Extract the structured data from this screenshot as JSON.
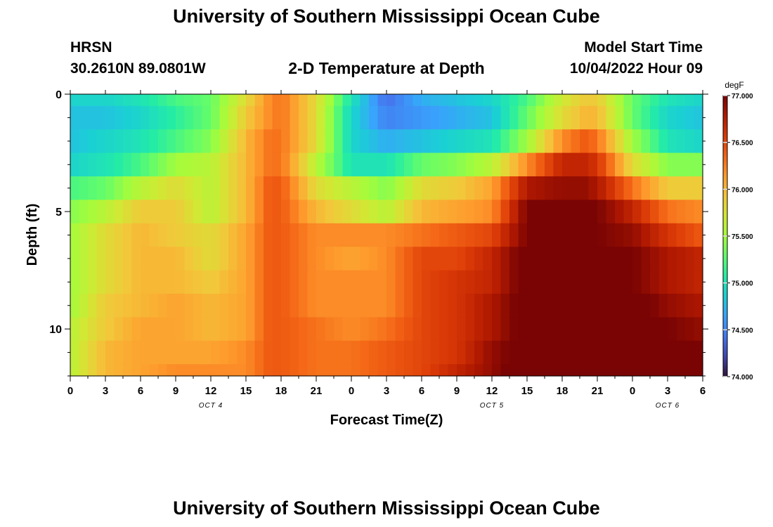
{
  "header": {
    "title": "University of Southern Mississippi Ocean Cube",
    "station_name": "HRSN",
    "station_coords": "30.2610N  89.0801W",
    "plot_title": "2-D Temperature at Depth",
    "model_label": "Model Start Time",
    "model_time": "10/04/2022 Hour 09"
  },
  "footer": {
    "title": "University of Southern Mississippi Ocean Cube"
  },
  "chart_data": {
    "type": "heatmap",
    "title": "2-D Temperature at Depth",
    "xlabel": "Forecast Time(Z)",
    "ylabel": "Depth (ft)",
    "colorbar_label": "degF",
    "x_ticks": [
      "0",
      "3",
      "6",
      "9",
      "12",
      "15",
      "18",
      "21",
      "0",
      "3",
      "6",
      "9",
      "12",
      "15",
      "18",
      "21",
      "0",
      "3",
      "6"
    ],
    "x_range_hours": [
      0,
      54
    ],
    "date_labels": [
      {
        "text": "OCT 4",
        "hour": 12
      },
      {
        "text": "OCT 5",
        "hour": 36
      },
      {
        "text": "OCT 6",
        "hour": 51
      }
    ],
    "y_ticks": [
      0,
      5,
      10
    ],
    "y_range": [
      0,
      12
    ],
    "y_inverted": true,
    "colorbar_ticks": [
      "77.000",
      "76.500",
      "76.000",
      "75.500",
      "75.000",
      "74.500",
      "74.000"
    ],
    "color_range": [
      74.0,
      77.0
    ],
    "colormap": [
      "#30123b",
      "#4145ab",
      "#4675ed",
      "#39a2fc",
      "#1bcfd4",
      "#24eca6",
      "#61fc6c",
      "#a4fc3b",
      "#d1e834",
      "#f3c63a",
      "#fe9b2d",
      "#f36315",
      "#d93806",
      "#b11901",
      "#7a0403"
    ],
    "column_hours": [
      0,
      3,
      6,
      9,
      12,
      15,
      17,
      18,
      21,
      24,
      27,
      30,
      33,
      36,
      39,
      42,
      44,
      45,
      48,
      51,
      54
    ],
    "rows": [
      {
        "depth": 0,
        "values": [
          74.9,
          74.9,
          75.0,
          75.2,
          75.3,
          75.8,
          76.2,
          76.3,
          75.8,
          75.0,
          74.4,
          74.7,
          74.8,
          74.9,
          75.2,
          75.7,
          75.9,
          75.9,
          75.3,
          75.0,
          74.9
        ]
      },
      {
        "depth": 1,
        "values": [
          74.8,
          74.8,
          74.9,
          75.1,
          75.3,
          75.9,
          76.2,
          76.3,
          75.8,
          74.9,
          74.5,
          74.6,
          74.7,
          74.8,
          75.3,
          75.8,
          76.0,
          76.0,
          75.3,
          74.9,
          74.8
        ]
      },
      {
        "depth": 2,
        "values": [
          74.8,
          74.9,
          75.0,
          75.2,
          75.4,
          76.0,
          76.3,
          76.3,
          75.8,
          74.9,
          74.7,
          74.8,
          74.9,
          75.0,
          75.5,
          76.2,
          76.4,
          76.3,
          75.5,
          75.0,
          74.9
        ]
      },
      {
        "depth": 3,
        "values": [
          74.9,
          75.0,
          75.2,
          75.5,
          75.6,
          76.0,
          76.3,
          76.3,
          75.6,
          75.0,
          75.0,
          75.3,
          75.4,
          75.6,
          76.2,
          76.7,
          76.7,
          76.6,
          75.8,
          75.4,
          75.4
        ]
      },
      {
        "depth": 4,
        "values": [
          75.2,
          75.3,
          75.6,
          75.8,
          75.6,
          76.0,
          76.4,
          76.4,
          75.8,
          75.6,
          75.4,
          75.8,
          75.9,
          76.1,
          76.8,
          76.9,
          76.9,
          76.8,
          76.3,
          75.9,
          75.9
        ]
      },
      {
        "depth": 5,
        "values": [
          75.4,
          75.6,
          75.9,
          75.9,
          75.6,
          76.0,
          76.4,
          76.4,
          76.0,
          75.8,
          75.6,
          76.0,
          76.1,
          76.2,
          77.0,
          77.0,
          77.0,
          77.0,
          76.7,
          76.3,
          76.2
        ]
      },
      {
        "depth": 6,
        "values": [
          75.5,
          75.8,
          76.0,
          75.9,
          75.8,
          76.1,
          76.4,
          76.4,
          76.2,
          76.2,
          76.2,
          76.3,
          76.4,
          76.5,
          77.0,
          77.1,
          77.1,
          77.0,
          76.9,
          76.6,
          76.4
        ]
      },
      {
        "depth": 7,
        "values": [
          75.5,
          75.8,
          76.0,
          76.0,
          75.8,
          76.1,
          76.4,
          76.4,
          76.2,
          76.1,
          76.2,
          76.5,
          76.5,
          76.7,
          77.1,
          77.2,
          77.1,
          77.1,
          77.0,
          76.8,
          76.7
        ]
      },
      {
        "depth": 8,
        "values": [
          75.5,
          75.8,
          76.0,
          76.0,
          75.9,
          76.1,
          76.4,
          76.4,
          76.2,
          76.2,
          76.2,
          76.5,
          76.6,
          76.7,
          77.1,
          77.2,
          77.2,
          77.2,
          77.0,
          76.8,
          76.7
        ]
      },
      {
        "depth": 9,
        "values": [
          75.5,
          75.9,
          76.0,
          76.1,
          76.0,
          76.1,
          76.4,
          76.4,
          76.2,
          76.2,
          76.2,
          76.5,
          76.6,
          76.8,
          77.1,
          77.2,
          77.3,
          77.2,
          77.1,
          76.9,
          76.8
        ]
      },
      {
        "depth": 10,
        "values": [
          75.6,
          75.9,
          76.1,
          76.1,
          76.0,
          76.1,
          76.4,
          76.4,
          76.3,
          76.2,
          76.3,
          76.5,
          76.6,
          76.8,
          77.1,
          77.2,
          77.3,
          77.3,
          77.1,
          77.0,
          76.9
        ]
      },
      {
        "depth": 11,
        "values": [
          75.6,
          76.0,
          76.1,
          76.1,
          76.1,
          76.2,
          76.4,
          76.4,
          76.3,
          76.3,
          76.4,
          76.5,
          76.6,
          76.9,
          77.1,
          77.3,
          77.3,
          77.3,
          77.2,
          77.0,
          77.0
        ]
      },
      {
        "depth": 12,
        "values": [
          75.6,
          76.0,
          76.1,
          76.2,
          76.2,
          76.2,
          76.4,
          76.4,
          76.3,
          76.3,
          76.4,
          76.5,
          76.7,
          76.9,
          77.2,
          77.3,
          77.4,
          77.4,
          77.3,
          77.1,
          77.0
        ]
      }
    ]
  }
}
